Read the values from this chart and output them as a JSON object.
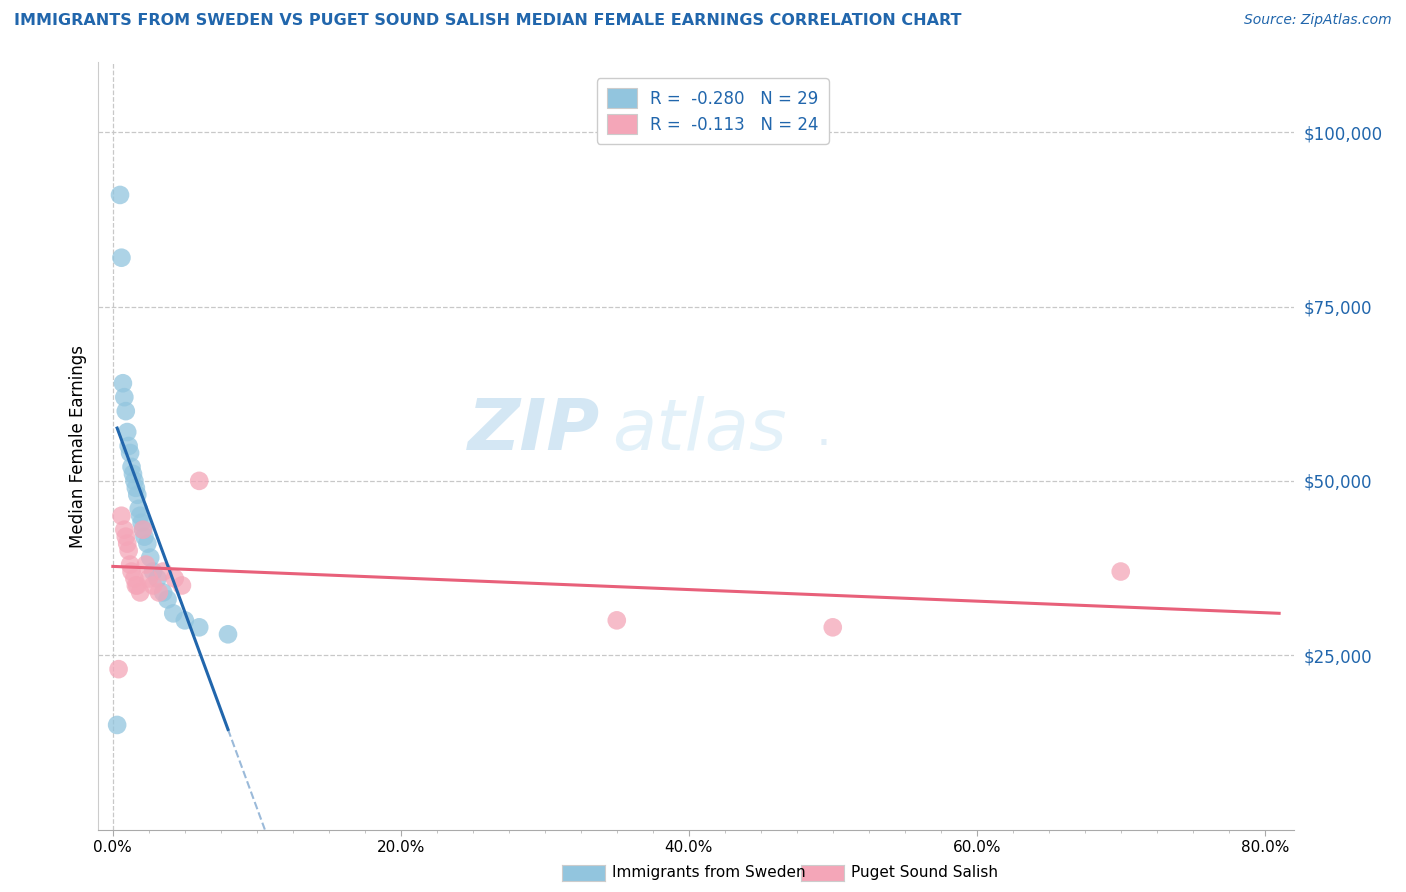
{
  "title": "IMMIGRANTS FROM SWEDEN VS PUGET SOUND SALISH MEDIAN FEMALE EARNINGS CORRELATION CHART",
  "source": "Source: ZipAtlas.com",
  "ylabel": "Median Female Earnings",
  "xlabel_ticks": [
    "0.0%",
    "",
    "",
    "",
    "",
    "",
    "",
    "",
    "20.0%",
    "",
    "",
    "",
    "",
    "",
    "",
    "",
    "40.0%",
    "",
    "",
    "",
    "",
    "",
    "",
    "",
    "60.0%",
    "",
    "",
    "",
    "",
    "",
    "",
    "",
    "80.0%"
  ],
  "xlabel_vals": [
    0.0,
    0.025,
    0.05,
    0.075,
    0.1,
    0.125,
    0.15,
    0.175,
    0.2,
    0.225,
    0.25,
    0.275,
    0.3,
    0.325,
    0.35,
    0.375,
    0.4,
    0.425,
    0.45,
    0.475,
    0.5,
    0.525,
    0.55,
    0.575,
    0.6,
    0.625,
    0.65,
    0.675,
    0.7,
    0.725,
    0.75,
    0.775,
    0.8
  ],
  "xlim": [
    -0.01,
    0.82
  ],
  "ylim": [
    0,
    110000
  ],
  "ytick_labels": [
    "$25,000",
    "$50,000",
    "$75,000",
    "$100,000"
  ],
  "ytick_vals": [
    25000,
    50000,
    75000,
    100000
  ],
  "legend1_R": "-0.280",
  "legend1_N": "29",
  "legend2_R": "-0.113",
  "legend2_N": "24",
  "blue_color": "#92c5de",
  "pink_color": "#f4a6b8",
  "blue_line_color": "#2166ac",
  "pink_line_color": "#e8607a",
  "title_color": "#2166ac",
  "source_color": "#2166ac",
  "background_color": "#ffffff",
  "grid_color": "#c8c8c8",
  "watermark_zip": "ZIP",
  "watermark_atlas": "atlas",
  "blue_scatter_x": [
    0.003,
    0.005,
    0.006,
    0.007,
    0.008,
    0.009,
    0.01,
    0.011,
    0.012,
    0.013,
    0.014,
    0.015,
    0.016,
    0.017,
    0.018,
    0.019,
    0.02,
    0.021,
    0.022,
    0.024,
    0.026,
    0.028,
    0.031,
    0.035,
    0.038,
    0.042,
    0.05,
    0.06,
    0.08
  ],
  "blue_scatter_y": [
    15000,
    91000,
    82000,
    64000,
    62000,
    60000,
    57000,
    55000,
    54000,
    52000,
    51000,
    50000,
    49000,
    48000,
    46000,
    45000,
    44000,
    43000,
    42000,
    41000,
    39000,
    37000,
    36000,
    34000,
    33000,
    31000,
    30000,
    29000,
    28000
  ],
  "pink_scatter_x": [
    0.004,
    0.006,
    0.008,
    0.009,
    0.01,
    0.011,
    0.012,
    0.013,
    0.015,
    0.016,
    0.017,
    0.019,
    0.021,
    0.023,
    0.025,
    0.028,
    0.032,
    0.035,
    0.043,
    0.048,
    0.06,
    0.35,
    0.5,
    0.7
  ],
  "pink_scatter_y": [
    23000,
    45000,
    43000,
    42000,
    41000,
    40000,
    38000,
    37000,
    36000,
    35000,
    35000,
    34000,
    43000,
    38000,
    36000,
    35000,
    34000,
    37000,
    36000,
    35000,
    50000,
    30000,
    29000,
    37000
  ]
}
